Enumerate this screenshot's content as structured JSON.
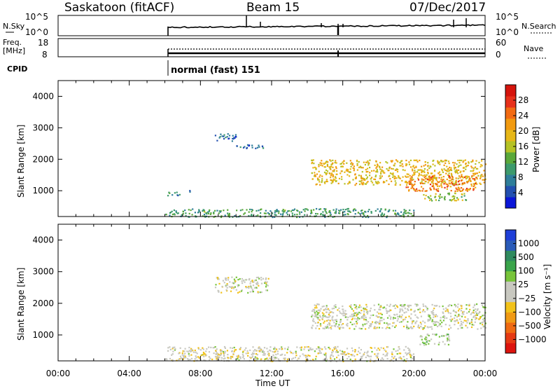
{
  "header": {
    "site": "Saskatoon (fitACF)",
    "beam": "Beam 15",
    "date": "07/Dec/2017"
  },
  "noise_panel": {
    "left_label": "N.Sky",
    "right_label": "N.Search",
    "left_ticks": [
      "10^5",
      "10^0"
    ],
    "right_ticks": [
      "10^5",
      "10^0"
    ]
  },
  "freq_panel": {
    "left_label_line1": "Freq.",
    "left_label_line2": "[MHz]",
    "right_label": "Nave",
    "left_ticks": [
      "18",
      "8"
    ],
    "right_ticks": [
      "60",
      "0"
    ]
  },
  "cpid": {
    "label": "CPID",
    "program": "normal (fast) 151"
  },
  "power_panel": {
    "ylabel": "Slant Range [km]",
    "cbar_label": "Power [dB]",
    "cbar_ticks": [
      "28",
      "24",
      "20",
      "16",
      "12",
      "8",
      "4"
    ],
    "cbar_colors": [
      "#0b16d8",
      "#2350b0",
      "#2f7e9a",
      "#3d9a6c",
      "#5aa83a",
      "#b5c225",
      "#e6b718",
      "#f19a10",
      "#f26a12",
      "#e7301a",
      "#d5140c"
    ]
  },
  "velocity_panel": {
    "ylabel": "Slant Range [km]",
    "cbar_label": "Velocity [m s⁻¹]",
    "cbar_ticks": [
      "1000",
      "500",
      "100",
      "25",
      "−25",
      "−100",
      "−500",
      "−1000"
    ],
    "cbar_colors": [
      "#1f3fd8",
      "#2a5bb8",
      "#2f8a5e",
      "#3aa44a",
      "#78c43a",
      "#c8c8c0",
      "#c8c8c0",
      "#f2c21a",
      "#f09a14",
      "#ef6a12",
      "#e53a14",
      "#dd140e"
    ]
  },
  "x_axis": {
    "label": "Time UT",
    "ticks": [
      "00:00",
      "04:00",
      "08:00",
      "12:00",
      "16:00",
      "20:00",
      "00:00"
    ]
  },
  "chart_data": [
    {
      "type": "heatmap",
      "name": "Power",
      "xlabel": "Time UT",
      "ylabel": "Slant Range [km]",
      "xlim": [
        0,
        24
      ],
      "ylim": [
        180,
        4500
      ],
      "y_ticks": [
        1000,
        2000,
        3000,
        4000
      ],
      "colorbar": {
        "label": "Power [dB]",
        "range": [
          0,
          30
        ]
      },
      "echo_regions": [
        {
          "t_start": 6.0,
          "t_end": 6.8,
          "range_start": 850,
          "range_end": 1000,
          "value": 8
        },
        {
          "t_start": 7.2,
          "t_end": 7.4,
          "range_start": 900,
          "range_end": 1050,
          "value": 6
        },
        {
          "t_start": 8.8,
          "t_end": 10.0,
          "range_start": 2600,
          "range_end": 2850,
          "value": 6
        },
        {
          "t_start": 10.0,
          "t_end": 11.8,
          "range_start": 2350,
          "range_end": 2480,
          "value": 5
        },
        {
          "t_start": 14.2,
          "t_end": 24.0,
          "range_start": 1200,
          "range_end": 2000,
          "value": 18
        },
        {
          "t_start": 19.5,
          "t_end": 23.5,
          "range_start": 1000,
          "range_end": 1500,
          "value": 22
        },
        {
          "t_start": 20.5,
          "t_end": 23.0,
          "range_start": 700,
          "range_end": 950,
          "value": 14
        },
        {
          "t_start": 6.0,
          "t_end": 20.0,
          "range_start": 180,
          "range_end": 450,
          "value": 10
        }
      ]
    },
    {
      "type": "heatmap",
      "name": "Velocity",
      "xlabel": "Time UT",
      "ylabel": "Slant Range [km]",
      "xlim": [
        0,
        24
      ],
      "ylim": [
        180,
        4500
      ],
      "y_ticks": [
        1000,
        2000,
        3000,
        4000
      ],
      "colorbar": {
        "label": "Velocity [m s⁻¹]",
        "range": [
          -1000,
          1000
        ]
      },
      "echo_regions": [
        {
          "t_start": 8.8,
          "t_end": 11.8,
          "range_start": 2350,
          "range_end": 2850,
          "value": 0
        },
        {
          "t_start": 14.2,
          "t_end": 24.0,
          "range_start": 1200,
          "range_end": 2000,
          "value": 0
        },
        {
          "t_start": 20.3,
          "t_end": 22.0,
          "range_start": 700,
          "range_end": 1050,
          "value": 120
        },
        {
          "t_start": 6.0,
          "t_end": 20.0,
          "range_start": 180,
          "range_end": 650,
          "value": -50
        }
      ]
    }
  ]
}
